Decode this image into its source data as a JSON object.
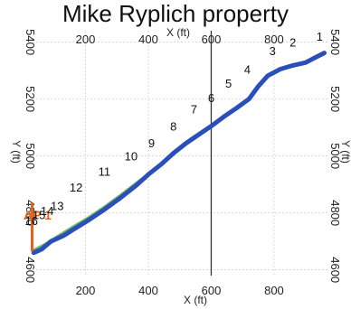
{
  "chart_data": {
    "type": "line",
    "title": "Mike Ryplich property",
    "xlabel": "X (ft)",
    "ylabel": "Y (ft)",
    "xlim": [
      20,
      970
    ],
    "ylim": [
      4580,
      5440
    ],
    "x_ticks": [
      200,
      400,
      600,
      800
    ],
    "y_ticks": [
      4600,
      4800,
      5000,
      5200,
      5400
    ],
    "grid": true,
    "series": [
      {
        "color": "#2b4fb8",
        "x": [
          35,
          60,
          90,
          130,
          170,
          210,
          260,
          310,
          360,
          400,
          440,
          480,
          520,
          560,
          600,
          640,
          680,
          720,
          750,
          780,
          820,
          860,
          900,
          930,
          960
        ],
        "y": [
          4660,
          4672,
          4700,
          4720,
          4748,
          4775,
          4812,
          4852,
          4895,
          4935,
          4970,
          5010,
          5045,
          5075,
          5105,
          5138,
          5168,
          5200,
          5245,
          5282,
          5305,
          5318,
          5328,
          5345,
          5362
        ]
      },
      {
        "color": "#5fae4e",
        "x": [
          35,
          70,
          110,
          160,
          210,
          260,
          310,
          360,
          410,
          460,
          500
        ],
        "y": [
          4670,
          4690,
          4718,
          4752,
          4785,
          4822,
          4862,
          4905,
          4945,
          4985,
          5030
        ]
      }
    ],
    "stations": [
      {
        "label": "1",
        "x": 945,
        "y": 5405
      },
      {
        "label": "2",
        "x": 860,
        "y": 5385
      },
      {
        "label": "3",
        "x": 795,
        "y": 5355
      },
      {
        "label": "4",
        "x": 715,
        "y": 5290
      },
      {
        "label": "5",
        "x": 655,
        "y": 5240
      },
      {
        "label": "6",
        "x": 600,
        "y": 5190
      },
      {
        "label": "7",
        "x": 545,
        "y": 5150
      },
      {
        "label": "8",
        "x": 480,
        "y": 5090
      },
      {
        "label": "9",
        "x": 410,
        "y": 5030
      },
      {
        "label": "10",
        "x": 345,
        "y": 4985
      },
      {
        "label": "11",
        "x": 260,
        "y": 4930
      },
      {
        "label": "12",
        "x": 170,
        "y": 4875
      },
      {
        "label": "13",
        "x": 110,
        "y": 4810
      },
      {
        "label": "14",
        "x": 78,
        "y": 4792
      },
      {
        "label": "15",
        "x": 52,
        "y": 4778
      },
      {
        "label": "16",
        "x": 28,
        "y": 4758
      }
    ],
    "annotation": {
      "label": "AP 1",
      "color": "#e0641e",
      "x": 30,
      "y_from": 4665,
      "y_to": 4835
    },
    "marker_line": {
      "x": 600,
      "color": "#333333"
    }
  }
}
